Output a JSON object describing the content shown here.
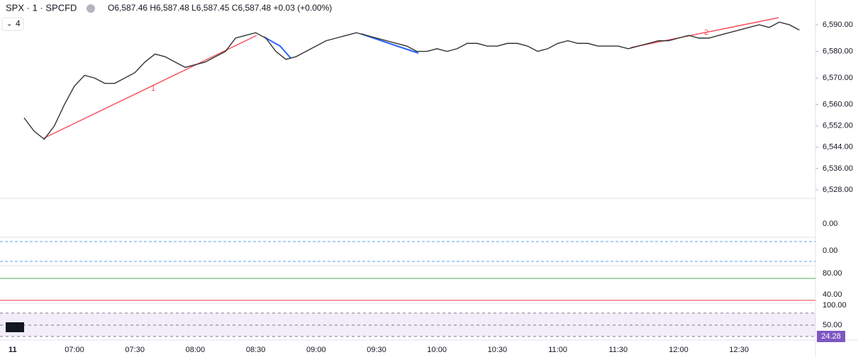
{
  "chart_data": {
    "type": "line",
    "title": "SPX · 1 · SPCFD",
    "subtitle": "O6,587.46 H6,587.48 L6,587.45 C6,587.48 +0.03 (+0.00%)",
    "interval_badge": "4",
    "annotations": [
      "1",
      "2"
    ],
    "color": "#333333",
    "categories": [
      "06:35",
      "06:40",
      "06:45",
      "06:50",
      "06:55",
      "07:00",
      "07:05",
      "07:10",
      "07:15",
      "07:20",
      "07:25",
      "07:30",
      "07:35",
      "07:40",
      "07:45",
      "07:50",
      "07:55",
      "08:00",
      "08:05",
      "08:10",
      "08:15",
      "08:20",
      "08:25",
      "08:30",
      "08:35",
      "08:40",
      "08:45",
      "08:50",
      "08:55",
      "09:00",
      "09:05",
      "09:10",
      "09:15",
      "09:20",
      "09:25",
      "09:30",
      "09:35",
      "09:40",
      "09:45",
      "09:50",
      "09:55",
      "10:00",
      "10:05",
      "10:10",
      "10:15",
      "10:20",
      "10:25",
      "10:30",
      "10:35",
      "10:40",
      "10:45",
      "10:50",
      "10:55",
      "11:00",
      "11:05",
      "11:10",
      "11:15",
      "11:20",
      "11:25",
      "11:30",
      "11:35",
      "11:40",
      "11:45",
      "11:50",
      "11:55",
      "12:00",
      "12:05",
      "12:10",
      "12:15",
      "12:20",
      "12:25",
      "12:30",
      "12:35",
      "12:40",
      "12:45",
      "12:50",
      "12:55",
      "13:00"
    ],
    "values": [
      6555,
      6550,
      6547,
      6552,
      6560,
      6567,
      6571,
      6570,
      6568,
      6568,
      6570,
      6572,
      6576,
      6579,
      6578,
      6576,
      6574,
      6575,
      6576,
      6578,
      6580,
      6585,
      6586,
      6587,
      6585,
      6580,
      6577,
      6578,
      6580,
      6582,
      6584,
      6585,
      6586,
      6587,
      6586,
      6585,
      6584,
      6583,
      6582,
      6580,
      6580,
      6581,
      6580,
      6581,
      6583,
      6583,
      6582,
      6582,
      6583,
      6583,
      6582,
      6580,
      6581,
      6583,
      6584,
      6583,
      6583,
      6582,
      6582,
      6582,
      6581,
      6582,
      6583,
      6584,
      6584,
      6585,
      6586,
      6585,
      6585,
      6586,
      6587,
      6588,
      6589,
      6590,
      6589,
      6591,
      6590,
      6588
    ],
    "ylim": [
      6524.8,
      6599.3
    ],
    "yticks": [
      {
        "value": 6528,
        "label": "6,528.00"
      },
      {
        "value": 6536,
        "label": "6,536.00"
      },
      {
        "value": 6544,
        "label": "6,544.00"
      },
      {
        "value": 6552,
        "label": "6,552.00"
      },
      {
        "value": 6560,
        "label": "6,560.00"
      },
      {
        "value": 6570,
        "label": "6,570.00"
      },
      {
        "value": 6580,
        "label": "6,580.00"
      },
      {
        "value": 6590,
        "label": "6,590.00"
      }
    ],
    "xticks": [
      "07:00",
      "07:30",
      "08:00",
      "08:30",
      "09:00",
      "09:30",
      "10:00",
      "10:30",
      "11:00",
      "11:30",
      "12:00",
      "12:30"
    ],
    "day_label": "11",
    "pane_labels": [
      "0.00",
      "0.00",
      "80.00",
      "40.00",
      "100.00",
      "50.00"
    ],
    "rsi_last": "24.28"
  }
}
